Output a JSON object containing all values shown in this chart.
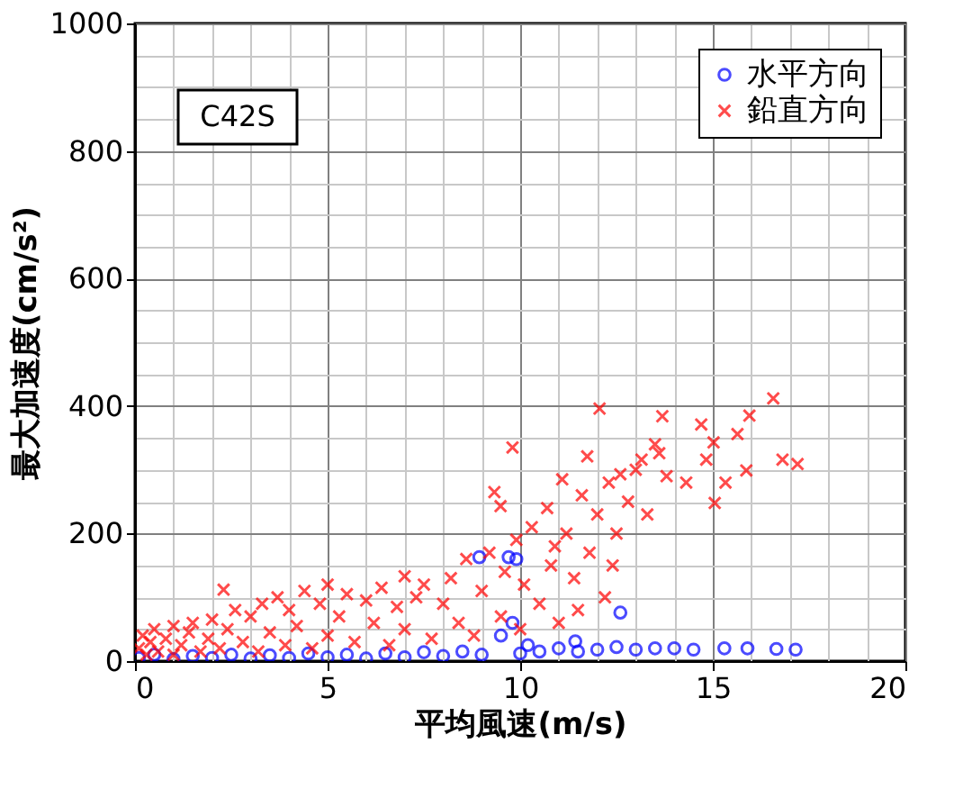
{
  "chart_data": {
    "type": "scatter",
    "xlabel": "平均風速(m/s)",
    "ylabel": "最大加速度(cm/s²)",
    "annotations": [
      "C42S"
    ],
    "xlim": [
      0,
      20
    ],
    "ylim": [
      0,
      1000
    ],
    "xticks": [
      0,
      {
        "value": 1,
        "label": null
      },
      {
        "value": 2,
        "label": null
      },
      {
        "value": 3,
        "label": null
      },
      {
        "value": 4,
        "label": null
      },
      5,
      {
        "value": 6,
        "label": null
      },
      {
        "value": 7,
        "label": null
      },
      {
        "value": 8,
        "label": null
      },
      {
        "value": 9,
        "label": null
      },
      10,
      {
        "value": 11,
        "label": null
      },
      {
        "value": 12,
        "label": null
      },
      {
        "value": 13,
        "label": null
      },
      {
        "value": 14,
        "label": null
      },
      15,
      {
        "value": 16,
        "label": null
      },
      {
        "value": 17,
        "label": null
      },
      {
        "value": 18,
        "label": null
      },
      {
        "value": 19,
        "label": null
      },
      20
    ],
    "yticks": [
      0,
      {
        "value": 50,
        "label": null
      },
      {
        "value": 100,
        "label": null
      },
      {
        "value": 150,
        "label": null
      },
      200,
      {
        "value": 250,
        "label": null
      },
      {
        "value": 300,
        "label": null
      },
      {
        "value": 350,
        "label": null
      },
      400,
      {
        "value": 450,
        "label": null
      },
      {
        "value": 500,
        "label": null
      },
      {
        "value": 550,
        "label": null
      },
      600,
      {
        "value": 650,
        "label": null
      },
      {
        "value": 700,
        "label": null
      },
      {
        "value": 750,
        "label": null
      },
      800,
      {
        "value": 850,
        "label": null
      },
      {
        "value": 900,
        "label": null
      },
      {
        "value": 950,
        "label": null
      },
      1000
    ],
    "grid": true,
    "legend": "top right",
    "series": [
      {
        "name": "水平方向",
        "color": "#0000ff",
        "marker": "circle",
        "x": [
          0.1,
          0.5,
          1,
          1.5,
          2,
          2.5,
          3,
          3.5,
          4,
          4.5,
          5,
          5.5,
          6,
          6.5,
          7,
          7.5,
          8,
          8.5,
          8.94,
          9,
          9.5,
          9.7,
          9.8,
          9.9,
          10,
          10.2,
          10.5,
          11,
          11.43,
          11.5,
          12,
          12.5,
          12.6,
          13,
          13.5,
          14,
          14.5,
          15.3,
          15.9,
          16.65,
          17.15
        ],
        "values": [
          5,
          10,
          3,
          8,
          5,
          10,
          4,
          9,
          5,
          12,
          6,
          10,
          4,
          12,
          6,
          14,
          8,
          15,
          163,
          10,
          40,
          163,
          60,
          160,
          12,
          25,
          15,
          20,
          31,
          15,
          18,
          22,
          76,
          18,
          20,
          20,
          18,
          20,
          20,
          19,
          18
        ]
      },
      {
        "name": "鉛直方向",
        "color": "#ff0000",
        "marker": "cross",
        "x": [
          0.1,
          0.2,
          0.3,
          0.4,
          0.5,
          0.6,
          0.8,
          1.0,
          1.0,
          1.2,
          1.4,
          1.5,
          1.7,
          1.9,
          2.0,
          2.2,
          2.3,
          2.4,
          2.6,
          2.8,
          3.0,
          3.2,
          3.3,
          3.5,
          3.7,
          3.9,
          4.0,
          4.2,
          4.4,
          4.6,
          4.8,
          5.0,
          5.0,
          5.3,
          5.5,
          5.7,
          6.0,
          6.2,
          6.4,
          6.6,
          6.8,
          7.0,
          7.0,
          7.3,
          7.5,
          7.7,
          8.0,
          8.2,
          8.4,
          8.6,
          8.8,
          9.0,
          9.2,
          9.33,
          9.49,
          9.5,
          9.6,
          9.8,
          9.9,
          10.0,
          10.1,
          10.3,
          10.5,
          10.7,
          10.8,
          10.9,
          11.0,
          11.09,
          11.2,
          11.4,
          11.5,
          11.6,
          11.74,
          11.8,
          12.0,
          12.06,
          12.2,
          12.3,
          12.4,
          12.5,
          12.6,
          12.8,
          13.0,
          13.15,
          13.3,
          13.5,
          13.61,
          13.69,
          13.8,
          14.31,
          14.7,
          14.83,
          15.02,
          15.05,
          15.33,
          15.64,
          15.87,
          15.95,
          16.57,
          16.81,
          17.2
        ],
        "values": [
          20,
          40,
          10,
          30,
          50,
          15,
          35,
          55,
          10,
          25,
          45,
          60,
          15,
          35,
          65,
          20,
          112,
          50,
          80,
          30,
          70,
          15,
          90,
          45,
          100,
          25,
          80,
          55,
          110,
          20,
          90,
          120,
          40,
          70,
          105,
          30,
          95,
          60,
          115,
          25,
          85,
          133,
          50,
          100,
          120,
          35,
          90,
          130,
          60,
          160,
          40,
          110,
          170,
          265,
          243,
          70,
          140,
          335,
          190,
          50,
          120,
          210,
          90,
          240,
          150,
          180,
          60,
          285,
          200,
          130,
          80,
          260,
          321,
          170,
          230,
          396,
          100,
          280,
          150,
          200,
          293,
          250,
          300,
          316,
          230,
          340,
          326,
          384,
          290,
          280,
          371,
          316,
          343,
          248,
          280,
          356,
          299,
          385,
          412,
          316,
          309
        ]
      }
    ]
  }
}
